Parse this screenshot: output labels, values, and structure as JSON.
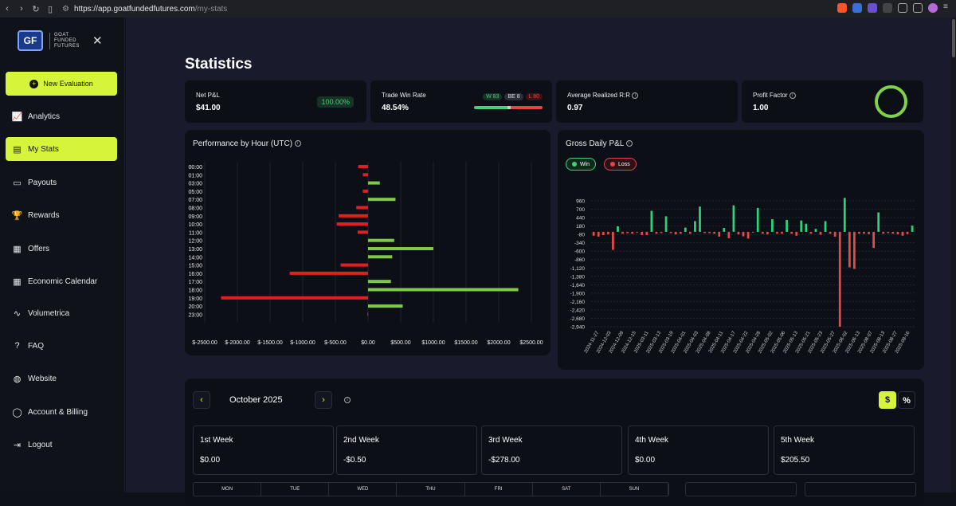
{
  "browser": {
    "url_host": "https://app.goatfundedfutures.com",
    "url_path": "/my-stats"
  },
  "sidebar": {
    "logo_mark": "GF",
    "logo_lines": [
      "GOAT",
      "FUNDED",
      "FUTURES"
    ],
    "new_evaluation": "New Evaluation",
    "items": [
      {
        "label": "Analytics",
        "icon": "chart-line-icon"
      },
      {
        "label": "My Stats",
        "icon": "stats-icon",
        "active": true
      },
      {
        "label": "Payouts",
        "icon": "wallet-icon"
      },
      {
        "label": "Rewards",
        "icon": "trophy-icon"
      },
      {
        "label": "Offers",
        "icon": "ticket-icon"
      },
      {
        "label": "Economic Calendar",
        "icon": "calendar-icon"
      },
      {
        "label": "Volumetrica",
        "icon": "chart-icon"
      },
      {
        "label": "FAQ",
        "icon": "question-icon"
      },
      {
        "label": "Website",
        "icon": "globe-icon"
      },
      {
        "label": "Account & Billing",
        "icon": "user-icon"
      },
      {
        "label": "Logout",
        "icon": "logout-icon"
      }
    ]
  },
  "page": {
    "title": "Statistics",
    "net_pnl": {
      "label": "Net P&L",
      "value": "$41.00",
      "badge": "100.00%"
    },
    "win_rate": {
      "label": "Trade Win Rate",
      "value": "48.54%",
      "w": "W 83",
      "be": "BE 8",
      "l": "L 80",
      "w_count": 83,
      "be_count": 8,
      "l_count": 80
    },
    "rr": {
      "label": "Average Realized R:R",
      "value": "0.97"
    },
    "profit_factor": {
      "label": "Profit Factor",
      "value": "1.00"
    }
  },
  "colors": {
    "accent": "#d6f53a",
    "win": "#44d07a",
    "loss": "#e04848",
    "bar_pos": "#7fc94a",
    "bar_neg": "#e02020"
  },
  "chart_data": [
    {
      "type": "bar",
      "orientation": "horizontal",
      "title": "Performance by Hour (UTC)",
      "categories": [
        "00:00",
        "01:00",
        "03:00",
        "05:00",
        "07:00",
        "08:00",
        "09:00",
        "10:00",
        "11:00",
        "12:00",
        "13:00",
        "14:00",
        "15:00",
        "16:00",
        "17:00",
        "18:00",
        "19:00",
        "20:00",
        "23:00"
      ],
      "values": [
        -150,
        -80,
        180,
        -80,
        420,
        -180,
        -450,
        -480,
        -160,
        400,
        1000,
        370,
        -420,
        -1200,
        350,
        2300,
        -2250,
        530,
        -10
      ],
      "xlim": [
        -2500,
        2500
      ],
      "ticks": [
        "$-2500.00",
        "$-2000.00",
        "$-1500.00",
        "$-1000.00",
        "$-500.00",
        "$0.00",
        "$500.00",
        "$1000.00",
        "$1500.00",
        "$2000.00",
        "$2500.00"
      ],
      "tick_values": [
        -2500,
        -2000,
        -1500,
        -1000,
        -500,
        0,
        500,
        1000,
        1500,
        2000,
        2500
      ],
      "grid": true
    },
    {
      "type": "bar",
      "title": "Gross Daily P&L",
      "legend": [
        "Win",
        "Loss"
      ],
      "legend_placement": "top-left",
      "y_ticks": [
        "960",
        "700",
        "440",
        "180",
        "-80",
        "-340",
        "-600",
        "-860",
        "-1,120",
        "-1,380",
        "-1,640",
        "-1,900",
        "-2,160",
        "-2,420",
        "-2,680",
        "-2,940"
      ],
      "ylim": [
        -2940,
        960
      ],
      "x_tick_labels": [
        "2024-11-27",
        "2024-12-03",
        "2024-12-09",
        "2024-12-15",
        "2025-03-11",
        "2025-03-13",
        "2025-03-19",
        "2025-04-01",
        "2025-04-03",
        "2025-04-08",
        "2025-04-11",
        "2025-04-17",
        "2025-04-22",
        "2025-04-28",
        "2025-05-02",
        "2025-05-06",
        "2025-05-13",
        "2025-05-21",
        "2025-05-23",
        "2025-05-27",
        "2025-06-02",
        "2025-06-13",
        "2025-08-07",
        "2025-08-13",
        "2025-08-27",
        "2025-09-16"
      ],
      "values": [
        -120,
        -150,
        -100,
        -80,
        -560,
        170,
        -60,
        -40,
        -60,
        -20,
        -100,
        -100,
        650,
        -60,
        -40,
        480,
        -40,
        -80,
        -60,
        130,
        -60,
        330,
        780,
        -40,
        -40,
        -60,
        -150,
        120,
        -200,
        820,
        -80,
        -140,
        -210,
        -20,
        740,
        -60,
        -80,
        390,
        -60,
        -60,
        370,
        -60,
        -120,
        350,
        250,
        -60,
        90,
        -90,
        330,
        -60,
        -150,
        -2940,
        1050,
        -1100,
        -1150,
        -60,
        -60,
        -70,
        -500,
        600,
        -60,
        -40,
        -60,
        -80,
        -120,
        -70,
        190
      ]
    }
  ],
  "calendar": {
    "month": "October 2025",
    "prev": "‹",
    "next": "›",
    "toggle_dollar": "$",
    "toggle_percent": "%",
    "weeks": [
      {
        "name": "1st Week",
        "value": "$0.00"
      },
      {
        "name": "2nd Week",
        "value": "-$0.50"
      },
      {
        "name": "3rd Week",
        "value": "-$278.00"
      },
      {
        "name": "4th Week",
        "value": "$0.00"
      },
      {
        "name": "5th Week",
        "value": "$205.50"
      }
    ],
    "days": [
      "MON",
      "TUE",
      "WED",
      "THU",
      "FRI",
      "SAT",
      "SUN"
    ]
  }
}
